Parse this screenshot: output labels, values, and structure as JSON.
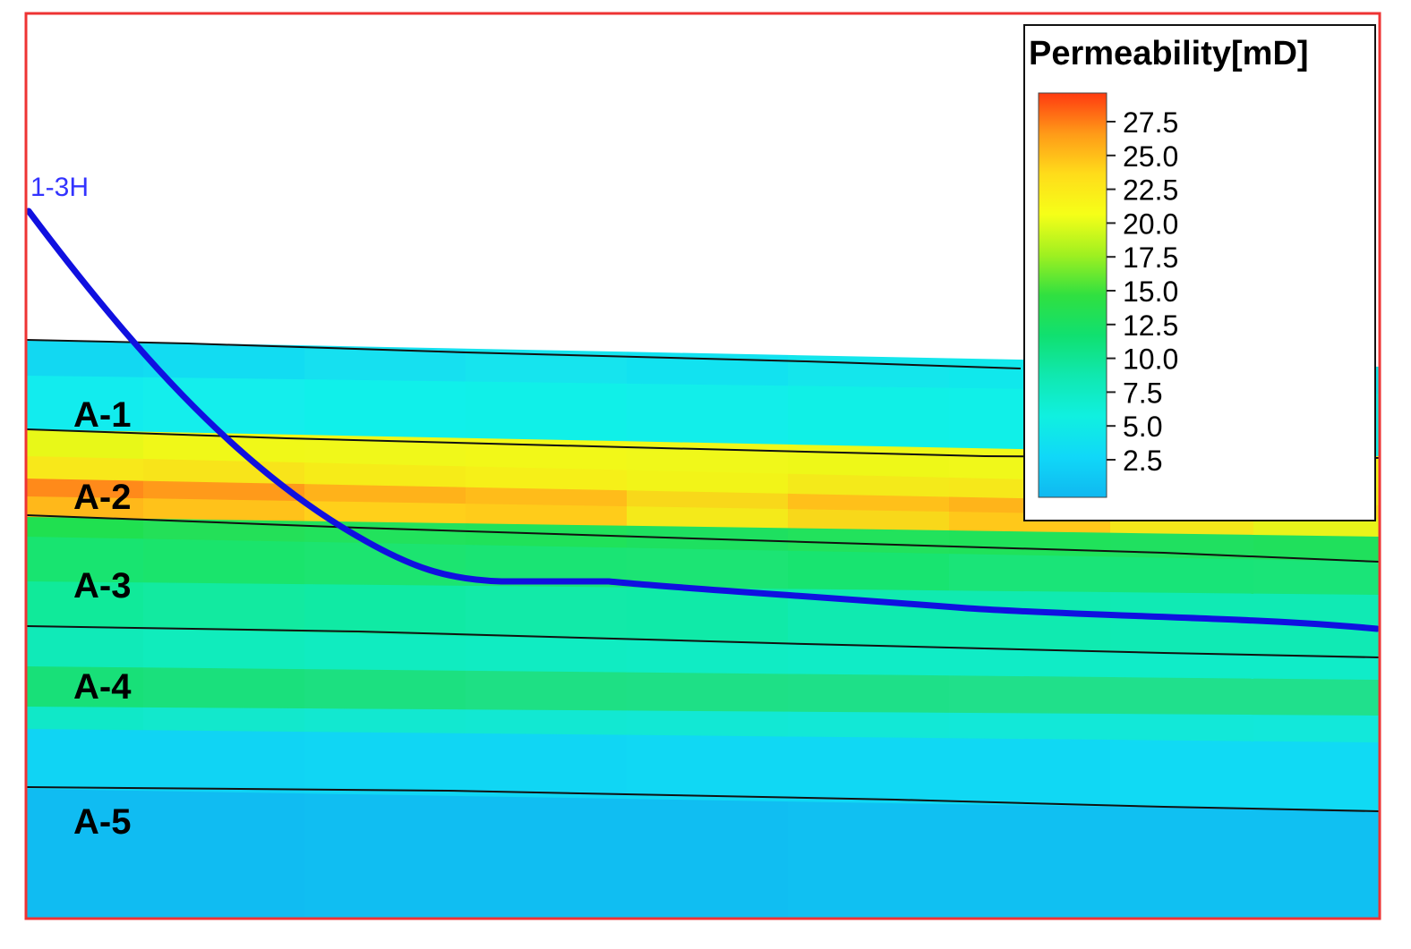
{
  "well": {
    "name": "1-3H",
    "color": "#1010e0"
  },
  "layers": [
    {
      "label": "A-1"
    },
    {
      "label": "A-2"
    },
    {
      "label": "A-3"
    },
    {
      "label": "A-4"
    },
    {
      "label": "A-5"
    }
  ],
  "legend": {
    "title": "Permeability[mD]",
    "ticks": [
      "27.5",
      "25.0",
      "22.5",
      "20.0",
      "17.5",
      "15.0",
      "12.5",
      "10.0",
      "7.5",
      "5.0",
      "2.5"
    ],
    "gradient_colors": [
      "#ff3a10",
      "#ff9a18",
      "#ffdc1a",
      "#f6ff18",
      "#a0f020",
      "#30e040",
      "#10e070",
      "#10e8b0",
      "#10f0e0",
      "#10d8f8",
      "#10b8f0"
    ]
  },
  "frame_color": "#ee3333"
}
